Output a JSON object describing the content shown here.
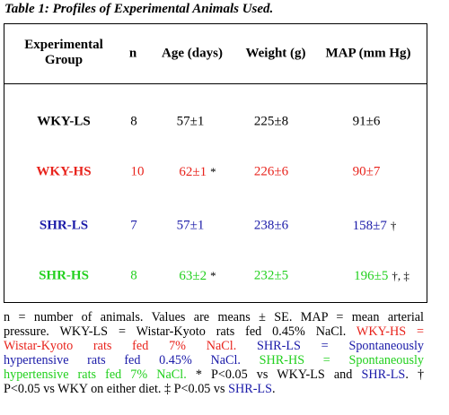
{
  "title": "Table 1: Profiles of Experimental Animals Used.",
  "table": {
    "headers": {
      "group_line1": "Experimental",
      "group_line2": "Group",
      "n": "n",
      "age": "Age (days)",
      "weight": "Weight (g)",
      "map": "MAP (mm Hg)"
    },
    "rows": [
      {
        "group": "WKY-LS",
        "n": "8",
        "age": "57±1",
        "age_mark": "",
        "weight": "225±8",
        "map": "91±6",
        "map_mark": "",
        "color": "#000000"
      },
      {
        "group": "WKY-HS",
        "n": "10",
        "age": "62±1",
        "age_mark": "*",
        "weight": "226±6",
        "map": "90±7",
        "map_mark": "",
        "color": "#e8231c"
      },
      {
        "group": "SHR-LS",
        "n": "7",
        "age": "57±1",
        "age_mark": "",
        "weight": "238±6",
        "map": "158±7",
        "map_mark": "†",
        "color": "#1a1aa8"
      },
      {
        "group": "SHR-HS",
        "n": "8",
        "age": "63±2",
        "age_mark": "*",
        "weight": "232±5",
        "map": "196±5",
        "map_mark": "†, ‡",
        "color": "#22d01e"
      }
    ]
  },
  "footnote": {
    "l1": "n = number of animals.  Values are means ± SE.  MAP = mean arterial",
    "l2a": "pressure.  WKY-LS = Wistar-Kyoto rats fed 0.45% NaCl.",
    "l2b": "WKY-HS =",
    "l3a": "Wistar-Kyoto rats fed 7% NaCl.",
    "l3b": "SHR-LS = Spontaneously",
    "l4a": "hypertensive rats fed 0.45% NaCl.",
    "l4b": "SHR-HS = Spontaneously",
    "l5a": "hypertensive rats fed 7% NaCl.",
    "l5b": "* P<0.05 vs WKY-LS and",
    "l5c": "SHR-LS",
    "l5d": ". †",
    "l6a": "P<0.05 vs WKY on either diet. ‡ P<0.05 vs",
    "l6b": "SHR-LS",
    "l6c": "."
  }
}
